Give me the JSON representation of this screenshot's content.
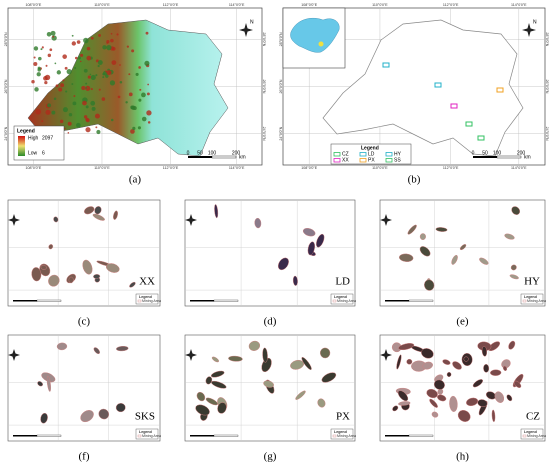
{
  "map_a": {
    "label": "(a)",
    "north": "N",
    "lon_labels": [
      "108°0'0\"E",
      "110°0'0\"E",
      "112°0'0\"E",
      "114°0'0\"E"
    ],
    "lat_labels": [
      "28°0'0\"N",
      "26°0'0\"N",
      "24°0'0\"N"
    ],
    "legend": {
      "title": "Legend",
      "items": [
        "High",
        "Low"
      ],
      "values": [
        "2097",
        "6"
      ]
    },
    "scale": {
      "ticks": [
        "0",
        "50",
        "100",
        "200"
      ],
      "unit": "km"
    }
  },
  "map_b": {
    "label": "(b)",
    "north": "N",
    "lon_labels": [
      "108°0'0\"E",
      "110°0'0\"E",
      "112°0'0\"E",
      "114°0'0\"E"
    ],
    "lat_labels": [
      "28°0'0\"N",
      "26°0'0\"N",
      "24°0'0\"N"
    ],
    "legend": {
      "title": "Legend",
      "items": [
        "CZ",
        "LD",
        "HY",
        "XX",
        "PX",
        "SS"
      ]
    },
    "scale": {
      "ticks": [
        "0",
        "50",
        "100",
        "200"
      ],
      "unit": "km"
    }
  },
  "sites": [
    {
      "code": "XX",
      "label": "(c)"
    },
    {
      "code": "LD",
      "label": "(d)"
    },
    {
      "code": "HY",
      "label": "(e)"
    },
    {
      "code": "SKS",
      "label": "(f)"
    },
    {
      "code": "PX",
      "label": "(g)"
    },
    {
      "code": "CZ",
      "label": "(h)"
    }
  ],
  "site_legend": {
    "title": "Legend",
    "item": "Mining Area"
  }
}
